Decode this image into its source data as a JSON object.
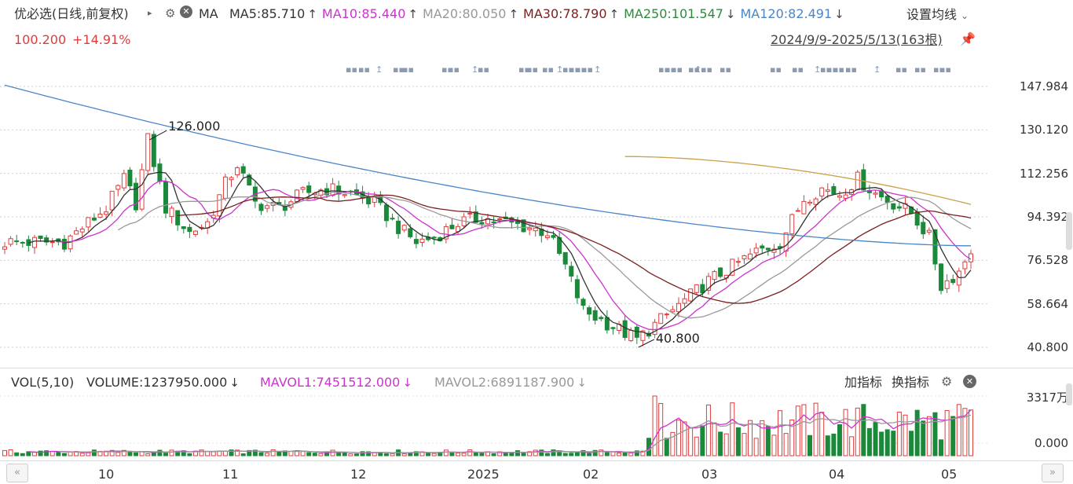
{
  "header": {
    "stock_name": "优必选(日线,前复权)",
    "ma_label": "MA",
    "ma_items": [
      {
        "label": "MA5:85.710",
        "arrow": "↑",
        "color": "#333333"
      },
      {
        "label": "MA10:85.440",
        "arrow": "↑",
        "color": "#cc33cc"
      },
      {
        "label": "MA20:80.050",
        "arrow": "↑",
        "color": "#999999"
      },
      {
        "label": "MA30:78.790",
        "arrow": "↑",
        "color": "#7a1f1f"
      },
      {
        "label": "MA250:101.547",
        "arrow": "↓",
        "color": "#2e8b3e"
      },
      {
        "label": "MA120:82.491",
        "arrow": "↓",
        "color": "#4a86c8"
      }
    ],
    "settings_label": "设置均线",
    "price": "100.200",
    "change": "+14.91%",
    "date_range": "2024/9/9-2025/5/13(163根)"
  },
  "colors": {
    "up": "#e03c3c",
    "down": "#1a8a3a",
    "ma5": "#333333",
    "ma10": "#cc33cc",
    "ma20": "#999999",
    "ma30": "#7a1f1f",
    "ma250": "#c9a24a",
    "ma120": "#4a86c8"
  },
  "volume_header": {
    "title": "VOL(5,10)",
    "volume": "VOLUME:1237950.000",
    "volume_arrow": "↓",
    "mavol1": "MAVOL1:7451512.000",
    "mavol1_arrow": "↓",
    "mavol2": "MAVOL2:6891187.900",
    "mavol2_arrow": "↓",
    "add_indicator": "加指标",
    "switch_indicator": "换指标"
  },
  "chart_data": [
    {
      "type": "candlestick",
      "y_ticks": [
        "147.984",
        "130.120",
        "112.256",
        "94.392",
        "76.528",
        "58.664",
        "40.800"
      ],
      "ylim": [
        40.8,
        147.984
      ],
      "x_ticks": [
        "10",
        "11",
        "12",
        "2025",
        "02",
        "03",
        "04",
        "05"
      ],
      "annotations": [
        {
          "label": "126.000",
          "type": "high"
        },
        {
          "label": "40.800",
          "type": "low"
        }
      ],
      "ma120_start": 148.5,
      "ma250_start": 119.2,
      "ma250_end": 99.5
    },
    {
      "type": "bar",
      "name": "volume",
      "y_ticks": [
        "3317万",
        "0.000"
      ]
    }
  ]
}
